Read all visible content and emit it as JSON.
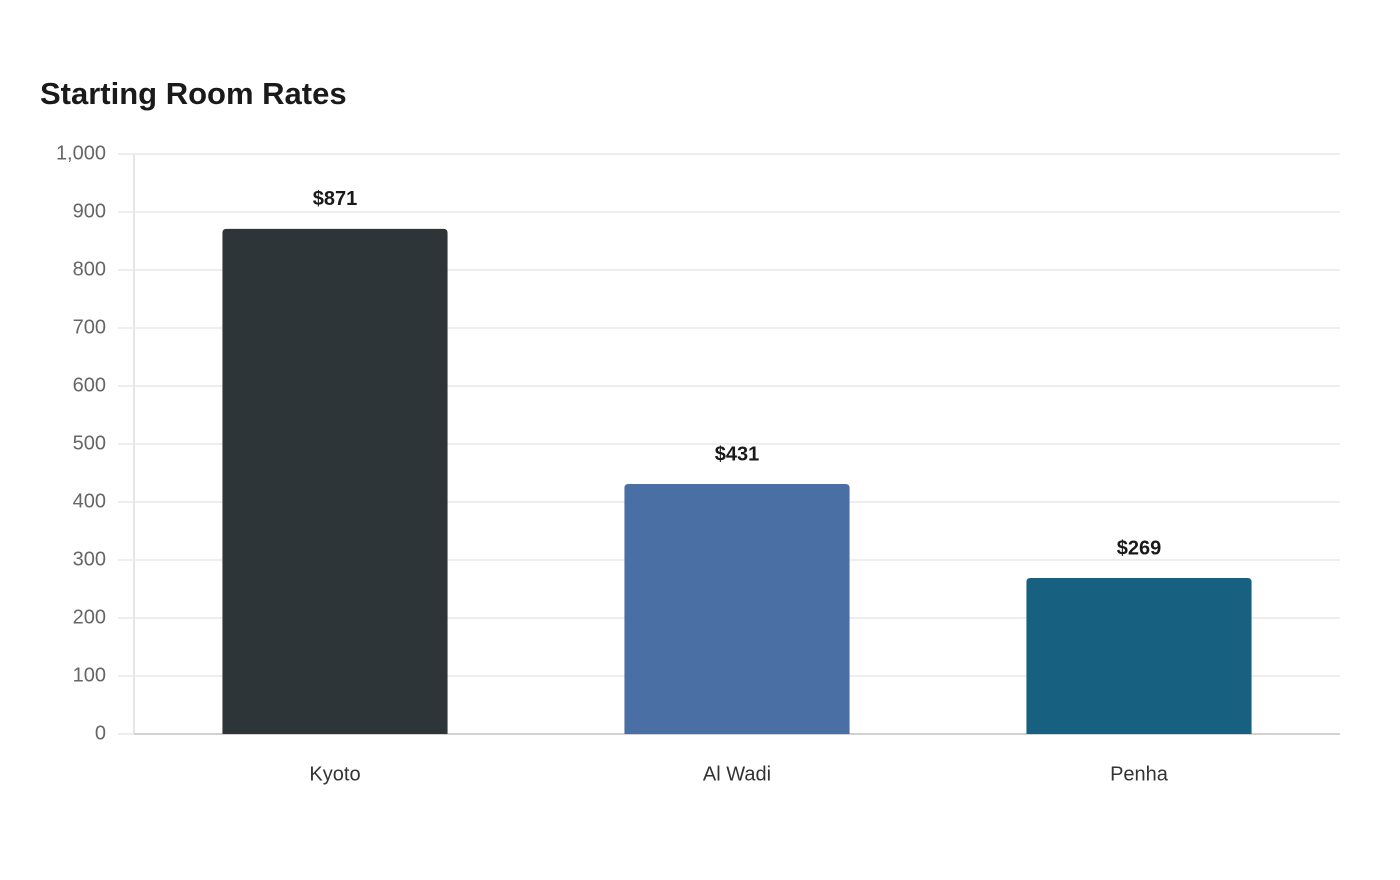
{
  "chart_data": {
    "type": "bar",
    "title": "Starting Room Rates",
    "categories": [
      "Kyoto",
      "Al Wadi",
      "Penha"
    ],
    "values": [
      871,
      431,
      269
    ],
    "value_labels": [
      "$871",
      "$431",
      "$269"
    ],
    "colors": [
      "#2e3538",
      "#4a6fa5",
      "#17607f"
    ],
    "ylim": [
      0,
      1000
    ],
    "yticks": [
      0,
      100,
      200,
      300,
      400,
      500,
      600,
      700,
      800,
      900,
      {
        "value": 1000,
        "label": "1,000"
      }
    ],
    "grid": true
  }
}
